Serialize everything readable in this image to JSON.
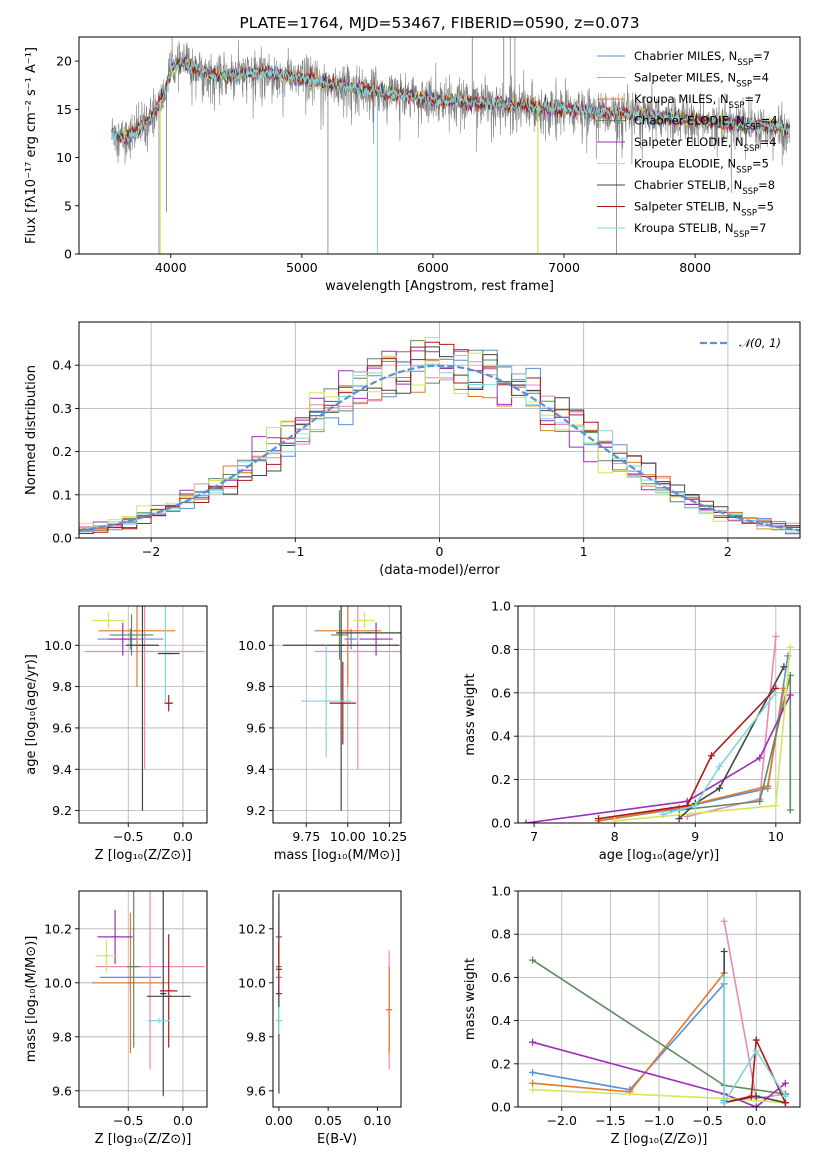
{
  "colors": {
    "Chabrier MILES": "#5b8fd6",
    "Salpeter MILES": "#e88bb8",
    "Kroupa MILES": "#e07a2a",
    "Chabrier ELODIE": "#5f8a5f",
    "Salpeter ELODIE": "#9b30b8",
    "Kroupa ELODIE": "#d6e65a",
    "Chabrier STELIB": "#444444",
    "Salpeter STELIB": "#b01818",
    "Kroupa STELIB": "#7dd8dc",
    "gauss": "#5b8fd6",
    "grid": "#b0b0b0"
  },
  "chart_data": [
    {
      "id": "spectrum",
      "type": "line",
      "title": "PLATE=1764, MJD=53467, FIBERID=0590, z=0.073",
      "xlabel": "wavelength [Angstrom, rest frame]",
      "ylabel": "Flux [fλ10⁻¹⁷ erg cm⁻² s⁻¹ A⁻¹]",
      "xlim": [
        3300,
        8800
      ],
      "ylim": [
        0,
        22.5
      ],
      "xticks": [
        4000,
        5000,
        6000,
        7000,
        8000
      ],
      "yticks": [
        0,
        5,
        10,
        15,
        20
      ],
      "grid": false,
      "legend_position": "top-right",
      "legend": [
        {
          "name": "Chabrier MILES",
          "nssp": "7"
        },
        {
          "name": "Salpeter MILES",
          "nssp": "4"
        },
        {
          "name": "Kroupa MILES",
          "nssp": "7"
        },
        {
          "name": "Chabrier ELODIE",
          "nssp": "4"
        },
        {
          "name": "Salpeter ELODIE",
          "nssp": "4"
        },
        {
          "name": "Kroupa ELODIE",
          "nssp": "5"
        },
        {
          "name": "Chabrier STELIB",
          "nssp": "8"
        },
        {
          "name": "Salpeter STELIB",
          "nssp": "5"
        },
        {
          "name": "Kroupa STELIB",
          "nssp": "7"
        }
      ],
      "legend_suffix": ", N",
      "legend_sub": "SSP",
      "legend_eq": "=",
      "continuum_nodes": [
        [
          3550,
          12.6
        ],
        [
          3650,
          12.0
        ],
        [
          3750,
          12.8
        ],
        [
          3850,
          14.2
        ],
        [
          3950,
          16.5
        ],
        [
          4000,
          19.2
        ],
        [
          4100,
          19.8
        ],
        [
          4300,
          18.5
        ],
        [
          4500,
          18.6
        ],
        [
          4700,
          18.9
        ],
        [
          5000,
          18.2
        ],
        [
          5500,
          17.0
        ],
        [
          6000,
          16.0
        ],
        [
          6500,
          15.6
        ],
        [
          7000,
          15.0
        ],
        [
          7500,
          14.5
        ],
        [
          8000,
          13.8
        ],
        [
          8500,
          13.3
        ],
        [
          8720,
          13.0
        ]
      ],
      "spikes": [
        [
          3910,
          0
        ],
        [
          3968,
          4.3
        ],
        [
          5199,
          0
        ],
        [
          5577,
          0
        ],
        [
          6300,
          23
        ],
        [
          6540,
          23
        ],
        [
          6590,
          23
        ],
        [
          6625,
          23
        ],
        [
          6800,
          0
        ],
        [
          7400,
          0
        ]
      ]
    },
    {
      "id": "residuals",
      "type": "step-histogram",
      "xlabel": "(data-model)/error",
      "ylabel": "Normed distribution",
      "xlim": [
        -2.5,
        2.5
      ],
      "ylim": [
        0,
        0.5
      ],
      "xticks": [
        -2,
        -1,
        0,
        1,
        2
      ],
      "yticks": [
        0.0,
        0.1,
        0.2,
        0.3,
        0.4
      ],
      "grid": true,
      "legend_position": "top-right",
      "gauss_label": "𝒩(0, 1)",
      "bin_width": 0.1
    },
    {
      "id": "age-vs-Z",
      "type": "errorbar",
      "xlabel": "Z [log₁₀(Z/Z⊙)]",
      "ylabel": "age  [log₁₀(age/yr)]",
      "xlim": [
        -0.95,
        0.22
      ],
      "ylim": [
        9.14,
        10.19
      ],
      "xticks": [
        -0.5,
        0.0
      ],
      "yticks": [
        9.2,
        9.4,
        9.6,
        9.8,
        10.0
      ],
      "grid": true,
      "points": [
        {
          "series": "Chabrier MILES",
          "x": -0.48,
          "xerr": 0.3,
          "y": 10.03,
          "yerr": 0.05
        },
        {
          "series": "Salpeter MILES",
          "x": -0.35,
          "xerr": 0.55,
          "y": 9.97,
          "yerr": 0.57
        },
        {
          "series": "Kroupa MILES",
          "x": -0.42,
          "xerr": 0.35,
          "y": 10.07,
          "yerr": 0.27
        },
        {
          "series": "Chabrier ELODIE",
          "x": -0.47,
          "xerr": 0.2,
          "y": 10.05,
          "yerr": 0.1
        },
        {
          "series": "Salpeter ELODIE",
          "x": -0.55,
          "xerr": 0.13,
          "y": 10.03,
          "yerr": 0.08
        },
        {
          "series": "Kroupa ELODIE",
          "x": -0.68,
          "xerr": 0.15,
          "y": 10.12,
          "yerr": 0.04
        },
        {
          "series": "Chabrier STELIB",
          "x": -0.37,
          "xerr": 0.15,
          "y": 10.0,
          "yerr": 0.8
        },
        {
          "series": "Salpeter STELIB",
          "x": -0.13,
          "xerr": 0.04,
          "y": 9.72,
          "yerr": 0.04
        },
        {
          "series": "Kroupa STELIB",
          "x": -0.16,
          "xerr": 0.06,
          "y": 9.96,
          "yerr": 0.24
        },
        {
          "series": "Chabrier STELIB",
          "x": -0.13,
          "xerr": 0.1,
          "y": 9.96,
          "yerr": 0.0
        }
      ]
    },
    {
      "id": "age-vs-mass",
      "type": "errorbar",
      "xlabel": "mass [log₁₀(M/M⊙)]",
      "ylabel": "",
      "xlim": [
        9.55,
        10.32
      ],
      "ylim": [
        9.14,
        10.19
      ],
      "xticks": [
        9.75,
        10.0,
        10.25
      ],
      "yticks": [
        9.2,
        9.4,
        9.6,
        9.8,
        10.0
      ],
      "grid": true,
      "points": [
        {
          "series": "Chabrier MILES",
          "x": 10.02,
          "xerr": 0.04,
          "y": 10.03,
          "yerr": 0.05
        },
        {
          "series": "Salpeter MILES",
          "x": 10.06,
          "xerr": 0.26,
          "y": 9.97,
          "yerr": 0.57
        },
        {
          "series": "Kroupa MILES",
          "x": 10.0,
          "xerr": 0.2,
          "y": 10.07,
          "yerr": 0.27
        },
        {
          "series": "Chabrier ELODIE",
          "x": 9.95,
          "xerr": 0.05,
          "y": 10.05,
          "yerr": 0.12
        },
        {
          "series": "Salpeter ELODIE",
          "x": 10.17,
          "xerr": 0.1,
          "y": 10.03,
          "yerr": 0.08
        },
        {
          "series": "Kroupa ELODIE",
          "x": 10.1,
          "xerr": 0.06,
          "y": 10.12,
          "yerr": 0.04
        },
        {
          "series": "Chabrier STELIB",
          "x": 9.96,
          "xerr": 0.35,
          "y": 10.0,
          "yerr": 0.8
        },
        {
          "series": "Salpeter STELIB",
          "x": 9.97,
          "xerr": 0.08,
          "y": 9.72,
          "yerr": 0.2
        },
        {
          "series": "Kroupa STELIB",
          "x": 9.87,
          "xerr": 0.15,
          "y": 9.73,
          "yerr": 0.27
        },
        {
          "series": "Chabrier STELIB",
          "x": 10.13,
          "xerr": 0.2,
          "y": 10.06,
          "yerr": 0.0
        }
      ]
    },
    {
      "id": "mass-weight-vs-age",
      "type": "line",
      "xlabel": "age  [log₁₀(age/yr)]",
      "ylabel": "mass weight",
      "xlim": [
        6.8,
        10.3
      ],
      "ylim": [
        0,
        1.0
      ],
      "xticks": [
        7,
        8,
        9,
        10
      ],
      "yticks": [
        0.0,
        0.2,
        0.4,
        0.6,
        0.8,
        1.0
      ],
      "grid": true,
      "series": [
        {
          "name": "Chabrier MILES",
          "x": [
            7.8,
            8.7,
            9.9,
            10.15
          ],
          "y": [
            0.01,
            0.06,
            0.16,
            0.77
          ]
        },
        {
          "name": "Salpeter MILES",
          "x": [
            8.9,
            9.8,
            10.0
          ],
          "y": [
            0.03,
            0.11,
            0.86
          ]
        },
        {
          "name": "Kroupa MILES",
          "x": [
            7.8,
            8.8,
            9.9,
            10.1
          ],
          "y": [
            0.01,
            0.07,
            0.17,
            0.62
          ]
        },
        {
          "name": "Chabrier ELODIE",
          "x": [
            8.8,
            9.8,
            10.18,
            10.18
          ],
          "y": [
            0.06,
            0.1,
            0.68,
            0.06
          ]
        },
        {
          "name": "Salpeter ELODIE",
          "x": [
            6.9,
            8.9,
            9.8,
            10.18
          ],
          "y": [
            0.0,
            0.1,
            0.3,
            0.59
          ]
        },
        {
          "name": "Kroupa ELODIE",
          "x": [
            8.0,
            10.0,
            10.18
          ],
          "y": [
            0.01,
            0.08,
            0.81
          ]
        },
        {
          "name": "Chabrier STELIB",
          "x": [
            8.8,
            9.0,
            9.3,
            10.1
          ],
          "y": [
            0.02,
            0.09,
            0.16,
            0.72
          ]
        },
        {
          "name": "Salpeter STELIB",
          "x": [
            7.8,
            8.9,
            9.2,
            10.0
          ],
          "y": [
            0.02,
            0.08,
            0.31,
            0.62
          ]
        },
        {
          "name": "Kroupa STELIB",
          "x": [
            8.6,
            9.0,
            9.3,
            10.0
          ],
          "y": [
            0.04,
            0.08,
            0.26,
            0.6
          ]
        }
      ]
    },
    {
      "id": "mass-vs-Z",
      "type": "errorbar",
      "xlabel": "Z [log₁₀(Z/Z⊙)]",
      "ylabel": "mass [log₁₀(M/M⊙)]",
      "xlim": [
        -0.95,
        0.22
      ],
      "ylim": [
        9.54,
        10.34
      ],
      "xticks": [
        -0.5,
        0.0
      ],
      "yticks": [
        9.6,
        9.8,
        10.0,
        10.2
      ],
      "grid": true,
      "points": [
        {
          "series": "Chabrier MILES",
          "x": -0.48,
          "xerr": 0.28,
          "y": 10.02,
          "yerr": 0.04
        },
        {
          "series": "Salpeter MILES",
          "x": -0.3,
          "xerr": 0.5,
          "y": 10.06,
          "yerr": 0.38
        },
        {
          "series": "Kroupa MILES",
          "x": -0.48,
          "xerr": 0.35,
          "y": 10.0,
          "yerr": 0.26
        },
        {
          "series": "Chabrier ELODIE",
          "x": -0.45,
          "xerr": 0.06,
          "y": 10.06,
          "yerr": 0.3
        },
        {
          "series": "Salpeter ELODIE",
          "x": -0.62,
          "xerr": 0.16,
          "y": 10.17,
          "yerr": 0.1
        },
        {
          "series": "Kroupa ELODIE",
          "x": -0.7,
          "xerr": 0.1,
          "y": 10.1,
          "yerr": 0.06
        },
        {
          "series": "Chabrier STELIB",
          "x": -0.18,
          "xerr": 0.02,
          "y": 9.96,
          "yerr": 0.38
        },
        {
          "series": "Salpeter STELIB",
          "x": -0.13,
          "xerr": 0.08,
          "y": 9.97,
          "yerr": 0.21
        },
        {
          "series": "Kroupa STELIB",
          "x": -0.22,
          "xerr": 0.1,
          "y": 9.86,
          "yerr": 0.01
        },
        {
          "series": "Chabrier STELIB",
          "x": -0.13,
          "xerr": 0.2,
          "y": 9.95,
          "yerr": 0.0
        }
      ]
    },
    {
      "id": "mass-vs-ebv",
      "type": "errorbar",
      "xlabel": "E(B-V)",
      "ylabel": "",
      "xlim": [
        -0.006,
        0.124
      ],
      "ylim": [
        9.54,
        10.34
      ],
      "xticks": [
        0.0,
        0.05,
        0.1
      ],
      "yticks": [
        9.6,
        9.8,
        10.0,
        10.2
      ],
      "grid": false,
      "points": [
        {
          "series": "Chabrier MILES",
          "x": 0.0,
          "xerr": 0.0,
          "y": 10.02,
          "yerr": 0.1
        },
        {
          "series": "Chabrier ELODIE",
          "x": 0.0,
          "xerr": 0.0,
          "y": 10.06,
          "yerr": 0.25
        },
        {
          "series": "Salpeter ELODIE",
          "x": 0.0,
          "xerr": 0.0,
          "y": 10.17,
          "yerr": 0.08
        },
        {
          "series": "Chabrier STELIB",
          "x": 0.0,
          "xerr": 0.0,
          "y": 9.96,
          "yerr": 0.37
        },
        {
          "series": "Kroupa STELIB",
          "x": 0.0,
          "xerr": 0.0,
          "y": 9.86,
          "yerr": 0.05
        },
        {
          "series": "Salpeter STELIB",
          "x": 0.0,
          "xerr": 0.0,
          "y": 10.05,
          "yerr": 0.1
        },
        {
          "series": "Salpeter MILES",
          "x": 0.112,
          "xerr": 0.0,
          "y": 9.9,
          "yerr": 0.22
        },
        {
          "series": "Kroupa MILES",
          "x": 0.112,
          "xerr": 0.0,
          "y": 9.9,
          "yerr": 0.16
        }
      ]
    },
    {
      "id": "mass-weight-vs-Z",
      "type": "line",
      "xlabel": "Z [log₁₀(Z/Z⊙)]",
      "ylabel": "mass weight",
      "xlim": [
        -2.45,
        0.45
      ],
      "ylim": [
        0,
        1.0
      ],
      "xticks": [
        -2.0,
        -1.5,
        -1.0,
        -0.5,
        0.0
      ],
      "yticks": [
        0.0,
        0.2,
        0.4,
        0.6,
        0.8,
        1.0
      ],
      "grid": true,
      "series": [
        {
          "name": "Chabrier MILES",
          "x": [
            -2.3,
            -1.3,
            -0.33,
            -0.33
          ],
          "y": [
            0.16,
            0.08,
            0.57,
            0.03
          ]
        },
        {
          "name": "Salpeter MILES",
          "x": [
            -0.33,
            0.0,
            0.3
          ],
          "y": [
            0.86,
            0.04,
            0.06
          ]
        },
        {
          "name": "Kroupa MILES",
          "x": [
            -2.3,
            -1.3,
            -0.33
          ],
          "y": [
            0.11,
            0.07,
            0.62
          ]
        },
        {
          "name": "Chabrier ELODIE",
          "x": [
            -2.3,
            -0.33,
            0.3
          ],
          "y": [
            0.68,
            0.1,
            0.06
          ]
        },
        {
          "name": "Salpeter ELODIE",
          "x": [
            -2.3,
            -0.33,
            0.0,
            0.3
          ],
          "y": [
            0.3,
            0.06,
            0.0,
            0.11
          ]
        },
        {
          "name": "Kroupa ELODIE",
          "x": [
            -2.3,
            -0.33,
            0.3
          ],
          "y": [
            0.08,
            0.04,
            0.02
          ]
        },
        {
          "name": "Chabrier STELIB",
          "x": [
            -0.33,
            -0.33,
            0.0,
            0.3
          ],
          "y": [
            0.72,
            0.02,
            0.05,
            0.02
          ]
        },
        {
          "name": "Salpeter STELIB",
          "x": [
            -0.33,
            -0.05,
            0.0,
            0.3
          ],
          "y": [
            0.02,
            0.05,
            0.31,
            0.02
          ]
        },
        {
          "name": "Kroupa STELIB",
          "x": [
            -0.33,
            -0.33,
            0.0,
            0.3
          ],
          "y": [
            0.6,
            0.02,
            0.26,
            0.05
          ]
        }
      ]
    }
  ]
}
